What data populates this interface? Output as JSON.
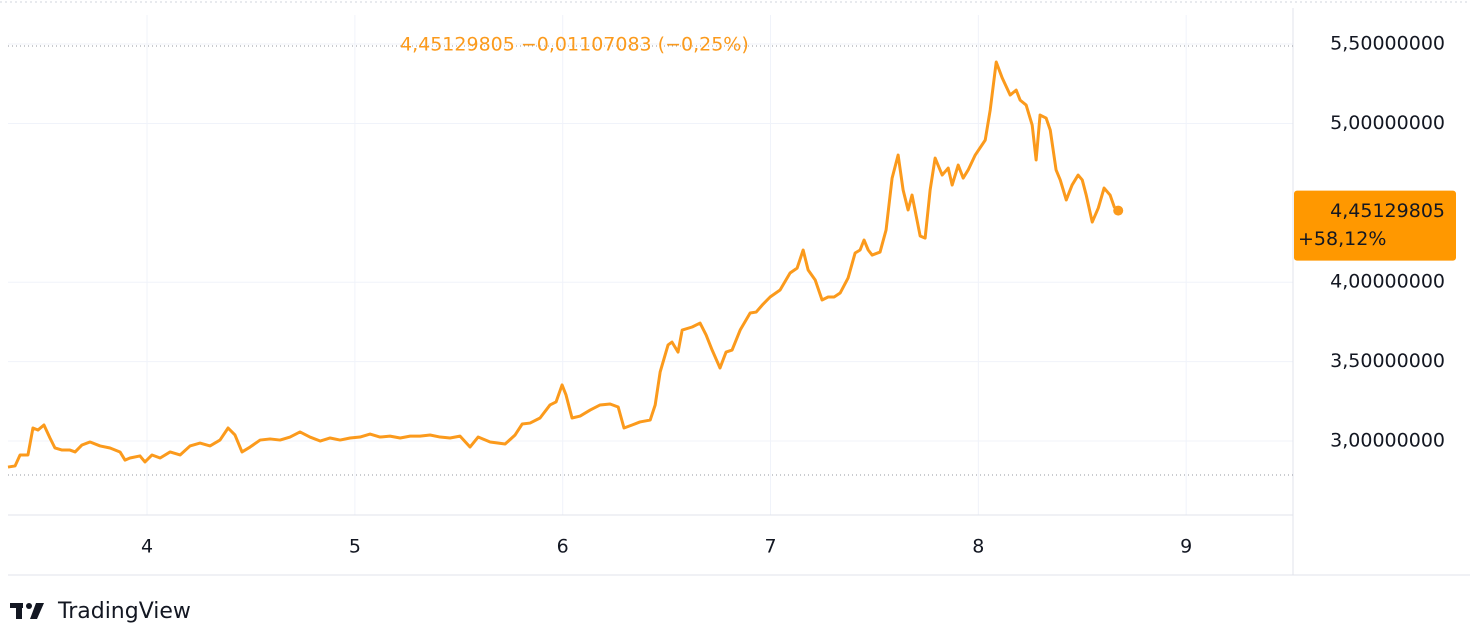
{
  "chart_data": {
    "type": "line",
    "header": "4,45129805 −0,01107083 (−0,25%)",
    "price_label": "4,45129805",
    "change_label": "+58,12%",
    "brand": "TradingView",
    "color": "#fb9a1c",
    "grid": true,
    "xlim": [
      3.331,
      9.514
    ],
    "ylim": [
      2.534,
      5.683
    ],
    "xticks": [
      4,
      5,
      6,
      7,
      8,
      9
    ],
    "yticks": [
      {
        "value": 3.0,
        "label": "3,00000000"
      },
      {
        "value": 3.5,
        "label": "3,50000000"
      },
      {
        "value": 4.0,
        "label": "4,00000000"
      },
      {
        "value": 5.0,
        "label": "5,00000000"
      },
      {
        "value": 5.5,
        "label": "5,50000000"
      }
    ],
    "x": [
      3.331,
      3.365,
      3.389,
      3.427,
      3.451,
      3.475,
      3.504,
      3.533,
      3.557,
      3.591,
      3.629,
      3.654,
      3.687,
      3.726,
      3.774,
      3.822,
      3.87,
      3.894,
      3.918,
      3.966,
      3.99,
      4.024,
      4.063,
      4.111,
      4.159,
      4.207,
      4.255,
      4.303,
      4.351,
      4.39,
      4.423,
      4.457,
      4.496,
      4.544,
      4.592,
      4.64,
      4.688,
      4.736,
      4.784,
      4.833,
      4.881,
      4.929,
      4.977,
      5.025,
      5.073,
      5.121,
      5.169,
      5.218,
      5.266,
      5.314,
      5.362,
      5.41,
      5.458,
      5.506,
      5.554,
      5.593,
      5.651,
      5.723,
      5.771,
      5.805,
      5.843,
      5.891,
      5.939,
      5.968,
      5.997,
      6.016,
      6.045,
      6.084,
      6.132,
      6.18,
      6.228,
      6.267,
      6.295,
      6.334,
      6.372,
      6.421,
      6.445,
      6.469,
      6.507,
      6.526,
      6.555,
      6.575,
      6.623,
      6.661,
      6.69,
      6.719,
      6.757,
      6.786,
      6.815,
      6.854,
      6.902,
      6.931,
      6.96,
      6.998,
      7.046,
      7.094,
      7.128,
      7.157,
      7.181,
      7.215,
      7.248,
      7.277,
      7.306,
      7.335,
      7.373,
      7.407,
      7.431,
      7.45,
      7.47,
      7.489,
      7.527,
      7.556,
      7.585,
      7.614,
      7.638,
      7.662,
      7.681,
      7.72,
      7.744,
      7.768,
      7.792,
      7.826,
      7.855,
      7.874,
      7.903,
      7.927,
      7.951,
      7.985,
      8.033,
      8.057,
      8.086,
      8.115,
      8.153,
      8.182,
      8.201,
      8.23,
      8.259,
      8.278,
      8.297,
      8.326,
      8.346,
      8.374,
      8.394,
      8.423,
      8.451,
      8.48,
      8.5,
      8.519,
      8.548,
      8.577,
      8.605,
      8.634,
      8.654,
      8.673
    ],
    "values": [
      2.836,
      2.843,
      2.912,
      2.912,
      3.082,
      3.069,
      3.101,
      3.019,
      2.956,
      2.943,
      2.943,
      2.931,
      2.975,
      2.994,
      2.969,
      2.956,
      2.931,
      2.88,
      2.893,
      2.906,
      2.868,
      2.912,
      2.893,
      2.931,
      2.912,
      2.969,
      2.987,
      2.969,
      3.006,
      3.082,
      3.038,
      2.931,
      2.962,
      3.006,
      3.013,
      3.006,
      3.025,
      3.057,
      3.025,
      3.0,
      3.019,
      3.006,
      3.019,
      3.025,
      3.044,
      3.025,
      3.031,
      3.019,
      3.031,
      3.031,
      3.038,
      3.025,
      3.019,
      3.031,
      2.962,
      3.025,
      2.994,
      2.981,
      3.038,
      3.107,
      3.113,
      3.145,
      3.227,
      3.246,
      3.353,
      3.29,
      3.145,
      3.157,
      3.195,
      3.227,
      3.233,
      3.214,
      3.082,
      3.101,
      3.12,
      3.132,
      3.227,
      3.435,
      3.605,
      3.623,
      3.56,
      3.699,
      3.718,
      3.743,
      3.668,
      3.573,
      3.46,
      3.56,
      3.573,
      3.699,
      3.806,
      3.812,
      3.856,
      3.907,
      3.951,
      4.058,
      4.089,
      4.203,
      4.077,
      4.014,
      3.888,
      3.907,
      3.907,
      3.932,
      4.026,
      4.184,
      4.203,
      4.266,
      4.203,
      4.171,
      4.19,
      4.329,
      4.656,
      4.801,
      4.581,
      4.455,
      4.549,
      4.291,
      4.278,
      4.581,
      4.782,
      4.675,
      4.719,
      4.612,
      4.738,
      4.656,
      4.707,
      4.801,
      4.895,
      5.084,
      5.387,
      5.286,
      5.179,
      5.21,
      5.147,
      5.116,
      4.99,
      4.77,
      5.053,
      5.034,
      4.958,
      4.707,
      4.644,
      4.518,
      4.612,
      4.675,
      4.644,
      4.549,
      4.379,
      4.467,
      4.593,
      4.549,
      4.474,
      4.45129805
    ]
  }
}
